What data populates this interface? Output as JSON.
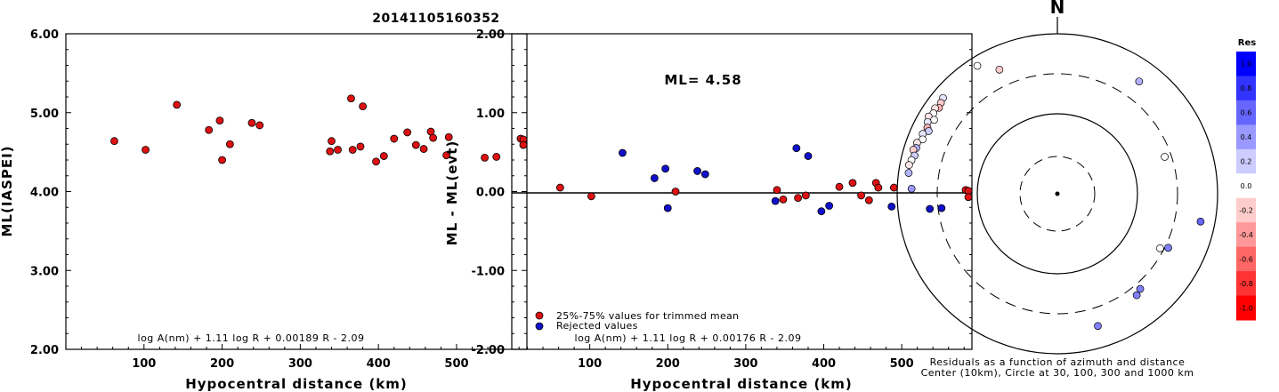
{
  "title": "20141105160352",
  "chart_data": [
    {
      "type": "scatter",
      "ylabel": "ML(IASPEI)",
      "xlabel": "Hypocentral distance (km)",
      "xlim": [
        0,
        590
      ],
      "ylim": [
        2.0,
        6.0
      ],
      "xticks": [
        100,
        200,
        300,
        400,
        500
      ],
      "yticks": [
        "2.00",
        "3.00",
        "4.00",
        "5.00",
        "6.00"
      ],
      "formula": "log A(nm) + 1.11 log R + 0.00189 R - 2.09",
      "points": [
        {
          "x": 62,
          "y": 4.64
        },
        {
          "x": 102,
          "y": 4.53
        },
        {
          "x": 142,
          "y": 5.1
        },
        {
          "x": 183,
          "y": 4.78
        },
        {
          "x": 197,
          "y": 4.9
        },
        {
          "x": 200,
          "y": 4.4
        },
        {
          "x": 210,
          "y": 4.6
        },
        {
          "x": 238,
          "y": 4.87
        },
        {
          "x": 248,
          "y": 4.84
        },
        {
          "x": 338,
          "y": 4.51
        },
        {
          "x": 340,
          "y": 4.64
        },
        {
          "x": 348,
          "y": 4.53
        },
        {
          "x": 365,
          "y": 5.18
        },
        {
          "x": 367,
          "y": 4.53
        },
        {
          "x": 377,
          "y": 4.57
        },
        {
          "x": 380,
          "y": 5.08
        },
        {
          "x": 397,
          "y": 4.38
        },
        {
          "x": 407,
          "y": 4.45
        },
        {
          "x": 420,
          "y": 4.67
        },
        {
          "x": 437,
          "y": 4.75
        },
        {
          "x": 448,
          "y": 4.59
        },
        {
          "x": 458,
          "y": 4.54
        },
        {
          "x": 467,
          "y": 4.76
        },
        {
          "x": 470,
          "y": 4.68
        },
        {
          "x": 487,
          "y": 4.46
        },
        {
          "x": 490,
          "y": 4.69
        },
        {
          "x": 536,
          "y": 4.43
        },
        {
          "x": 551,
          "y": 4.44
        },
        {
          "x": 582,
          "y": 4.67
        },
        {
          "x": 590,
          "y": 4.66
        },
        {
          "x": 590,
          "y": 4.59
        }
      ]
    },
    {
      "type": "scatter",
      "ylabel": "ML - ML(evt)",
      "xlabel": "Hypocentral distance (km)",
      "xlim": [
        0,
        590
      ],
      "ylim": [
        -2.0,
        2.0
      ],
      "xticks": [
        100,
        200,
        300,
        400,
        500
      ],
      "yticks": [
        "-2.00",
        "-1.00",
        "0.00",
        "1.00",
        "2.00"
      ],
      "annotation": "ML= 4.58",
      "formula": "log A(nm) + 1.11 log R + 0.00176 R - 2.09",
      "legend": [
        {
          "label": "25%-75% values for trimmed mean",
          "color": "#dd1111"
        },
        {
          "label": "Rejected values",
          "color": "#1111cc"
        }
      ],
      "series": [
        {
          "name": "25%-75% values for trimmed mean",
          "color": "#dd1111",
          "points": [
            {
              "x": 62,
              "y": 0.05
            },
            {
              "x": 102,
              "y": -0.06
            },
            {
              "x": 210,
              "y": 0.0
            },
            {
              "x": 340,
              "y": 0.02
            },
            {
              "x": 348,
              "y": -0.1
            },
            {
              "x": 367,
              "y": -0.08
            },
            {
              "x": 377,
              "y": -0.05
            },
            {
              "x": 420,
              "y": 0.06
            },
            {
              "x": 437,
              "y": 0.11
            },
            {
              "x": 448,
              "y": -0.05
            },
            {
              "x": 458,
              "y": -0.11
            },
            {
              "x": 467,
              "y": 0.11
            },
            {
              "x": 470,
              "y": 0.05
            },
            {
              "x": 490,
              "y": 0.05
            },
            {
              "x": 582,
              "y": 0.02
            },
            {
              "x": 590,
              "y": 0.01
            },
            {
              "x": 590,
              "y": -0.07
            }
          ]
        },
        {
          "name": "Rejected values",
          "color": "#1111cc",
          "points": [
            {
              "x": 142,
              "y": 0.49
            },
            {
              "x": 183,
              "y": 0.17
            },
            {
              "x": 197,
              "y": 0.29
            },
            {
              "x": 200,
              "y": -0.21
            },
            {
              "x": 238,
              "y": 0.26
            },
            {
              "x": 248,
              "y": 0.22
            },
            {
              "x": 338,
              "y": -0.12
            },
            {
              "x": 365,
              "y": 0.55
            },
            {
              "x": 380,
              "y": 0.45
            },
            {
              "x": 397,
              "y": -0.25
            },
            {
              "x": 407,
              "y": -0.18
            },
            {
              "x": 487,
              "y": -0.19
            },
            {
              "x": 536,
              "y": -0.22
            },
            {
              "x": 551,
              "y": -0.21
            }
          ]
        }
      ]
    },
    {
      "type": "scatter",
      "subtype": "polar",
      "north_label": "N",
      "caption_line1": "Residuals as a function of azimuth and distance",
      "caption_line2": "Center (10km), Circle at 30, 100, 300 and 1000 km",
      "colorbar": {
        "title": "Res",
        "ticks": [
          "1.0",
          "0.8",
          "0.6",
          "0.4",
          "0.2",
          "0.0",
          "-0.2",
          "-0.4",
          "-0.6",
          "-0.8",
          "-1.0"
        ]
      },
      "stations": [
        {
          "azimuth": 328,
          "distance": 760,
          "residual": 0.0
        },
        {
          "azimuth": 335,
          "distance": 500,
          "residual": -0.2
        },
        {
          "azimuth": 310,
          "distance": 720,
          "residual": 0.1
        },
        {
          "azimuth": 308,
          "distance": 690,
          "residual": -0.2
        },
        {
          "azimuth": 306,
          "distance": 660,
          "residual": -0.3
        },
        {
          "azimuth": 305,
          "distance": 720,
          "residual": -0.1
        },
        {
          "azimuth": 303,
          "distance": 690,
          "residual": 0.0
        },
        {
          "azimuth": 301,
          "distance": 740,
          "residual": -0.1
        },
        {
          "azimuth": 301,
          "distance": 610,
          "residual": 0.0
        },
        {
          "azimuth": 299,
          "distance": 700,
          "residual": 0.1
        },
        {
          "azimuth": 297,
          "distance": 650,
          "residual": -0.3
        },
        {
          "azimuth": 296,
          "distance": 600,
          "residual": 0.2
        },
        {
          "azimuth": 294,
          "distance": 680,
          "residual": 0.1
        },
        {
          "azimuth": 292,
          "distance": 640,
          "residual": 0.0
        },
        {
          "azimuth": 290,
          "distance": 720,
          "residual": -0.1
        },
        {
          "azimuth": 288,
          "distance": 700,
          "residual": 0.3
        },
        {
          "azimuth": 287,
          "distance": 750,
          "residual": -0.2
        },
        {
          "azimuth": 285,
          "distance": 690,
          "residual": 0.2
        },
        {
          "azimuth": 283,
          "distance": 730,
          "residual": 0.0
        },
        {
          "azimuth": 281,
          "distance": 760,
          "residual": -0.1
        },
        {
          "azimuth": 278,
          "distance": 740,
          "residual": 0.3
        },
        {
          "azimuth": 272,
          "distance": 650,
          "residual": 0.4
        },
        {
          "azimuth": 36,
          "distance": 530,
          "residual": 0.3
        },
        {
          "azimuth": 71,
          "distance": 250,
          "residual": 0.0
        },
        {
          "azimuth": 118,
          "distance": 270,
          "residual": 0.0
        },
        {
          "azimuth": 116,
          "distance": 330,
          "residual": 0.5
        },
        {
          "azimuth": 101,
          "distance": 650,
          "residual": 0.6
        },
        {
          "azimuth": 142,
          "distance": 390,
          "residual": 0.5
        },
        {
          "azimuth": 139,
          "distance": 360,
          "residual": 0.5
        },
        {
          "azimuth": 163,
          "distance": 520,
          "residual": 0.5
        }
      ]
    }
  ]
}
